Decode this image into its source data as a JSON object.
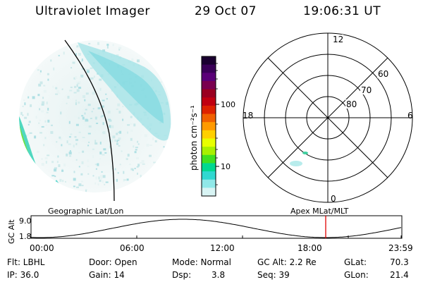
{
  "header": {
    "title": "Ultraviolet Imager",
    "date": "29 Oct 07",
    "time": "19:06:31 UT"
  },
  "colorbar": {
    "unit": "photon cm⁻²s⁻¹",
    "ticks": [
      "100",
      "10"
    ],
    "colors": [
      "#1a0030",
      "#3a0058",
      "#5a0078",
      "#7a0050",
      "#9a0020",
      "#c00010",
      "#dd2200",
      "#f06000",
      "#ff9a00",
      "#ffd000",
      "#e8ff00",
      "#a8f000",
      "#40e020",
      "#00d890",
      "#30d8d0",
      "#90e8e8",
      "#d8f4f4"
    ]
  },
  "polar": {
    "mlt_labels": {
      "top": "12",
      "left": "18",
      "right": "6",
      "bottom": "0"
    },
    "lat_labels": [
      "60",
      "70",
      "80"
    ]
  },
  "orbit": {
    "ylabel": "GC Alt",
    "ytick_top": "9.0",
    "ytick_bottom": "1.8",
    "left_title": "Geographic Lat/Lon",
    "right_title": "Apex MLat/MLT",
    "xticks": [
      "00:00",
      "06:00",
      "12:00",
      "18:00",
      "23:59"
    ],
    "marker_time_hours": 19.11
  },
  "info": {
    "row1": {
      "flt": "Flt: LBHL",
      "door": "Door: Open",
      "mode": "Mode: Normal",
      "gcalt": "GC Alt: 2.2 Re",
      "glat": "GLat:",
      "glat_val": "70.3"
    },
    "row2": {
      "ip": "IP: 36.0",
      "gain": "Gain: 14",
      "dsp": "Dsp:",
      "dsp_val": "3.8",
      "seq": "Seq: 39",
      "glon": "GLon:",
      "glon_val": "21.4"
    }
  }
}
